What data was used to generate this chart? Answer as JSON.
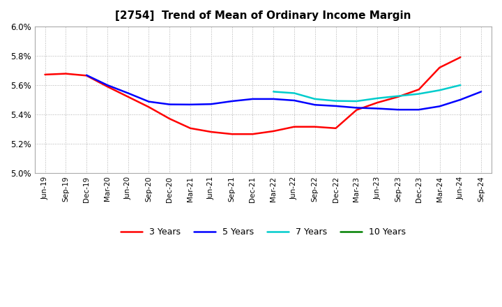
{
  "title": "[2754]  Trend of Mean of Ordinary Income Margin",
  "x_labels": [
    "Jun-19",
    "Sep-19",
    "Dec-19",
    "Mar-20",
    "Jun-20",
    "Sep-20",
    "Dec-20",
    "Mar-21",
    "Jun-21",
    "Sep-21",
    "Dec-21",
    "Mar-22",
    "Jun-22",
    "Sep-22",
    "Dec-22",
    "Mar-23",
    "Jun-23",
    "Sep-23",
    "Dec-23",
    "Mar-24",
    "Jun-24",
    "Sep-24"
  ],
  "ylim": [
    5.0,
    6.0
  ],
  "yticks": [
    5.0,
    5.2,
    5.4,
    5.6,
    5.8,
    6.0
  ],
  "series": {
    "3 Years": {
      "color": "#ff0000",
      "data_y": [
        5.672,
        5.678,
        5.665,
        5.59,
        5.52,
        5.45,
        5.37,
        5.305,
        5.28,
        5.265,
        5.265,
        5.285,
        5.315,
        5.315,
        5.305,
        5.43,
        5.48,
        5.52,
        5.57,
        5.72,
        5.79,
        null
      ]
    },
    "5 Years": {
      "color": "#0000ff",
      "data_y": [
        null,
        null,
        5.668,
        5.6,
        5.545,
        5.487,
        5.468,
        5.467,
        5.47,
        5.49,
        5.505,
        5.505,
        5.495,
        5.465,
        5.457,
        5.445,
        5.44,
        5.432,
        5.432,
        5.455,
        5.5,
        5.555
      ]
    },
    "7 Years": {
      "color": "#00cccc",
      "data_y": [
        null,
        null,
        null,
        null,
        null,
        null,
        null,
        null,
        null,
        null,
        null,
        5.555,
        5.545,
        5.505,
        5.492,
        5.49,
        5.51,
        5.525,
        5.54,
        5.565,
        5.6,
        null
      ]
    },
    "10 Years": {
      "color": "#008000",
      "data_y": [
        null,
        null,
        null,
        null,
        null,
        null,
        null,
        null,
        null,
        null,
        null,
        null,
        null,
        null,
        null,
        null,
        null,
        null,
        null,
        null,
        null,
        null
      ]
    }
  },
  "legend_labels": [
    "3 Years",
    "5 Years",
    "7 Years",
    "10 Years"
  ],
  "background_color": "#ffffff",
  "grid_color": "#b0b0b0"
}
